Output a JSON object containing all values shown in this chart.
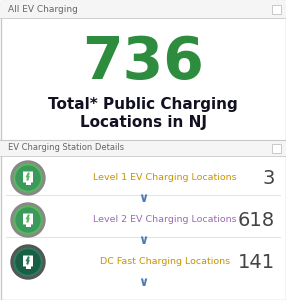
{
  "bg_color": "#ffffff",
  "border_color": "#c8c8c8",
  "header_text": "All EV Charging",
  "header_color": "#666666",
  "header_bg": "#f5f5f5",
  "big_number": "736",
  "big_number_color": "#2d8c3e",
  "subtitle_line1": "Total* Public Charging",
  "subtitle_line2": "Locations in NJ",
  "subtitle_color": "#111122",
  "section_title": "EV Charging Station Details",
  "section_title_color": "#666666",
  "section_bg": "#f5f5f5",
  "divider_color": "#dddddd",
  "rows": [
    {
      "label": "Level 1 EV Charging Locations",
      "value": "3",
      "label_color": "#c89400",
      "value_color": "#444444",
      "icon_outer": "#888888",
      "icon_bg": "#5cb85c",
      "icon_inner": "#3a9a5c"
    },
    {
      "label": "Level 2 EV Charging Locations",
      "value": "618",
      "label_color": "#9b6bb5",
      "value_color": "#444444",
      "icon_outer": "#888888",
      "icon_bg": "#5cb85c",
      "icon_inner": "#3a9a5c"
    },
    {
      "label": "DC Fast Charging Locations",
      "value": "141",
      "label_color": "#c89400",
      "value_color": "#444444",
      "icon_outer": "#555555",
      "icon_bg": "#2e7d5e",
      "icon_inner": "#1a5e46"
    }
  ],
  "chevron_color": "#4a7ab5"
}
